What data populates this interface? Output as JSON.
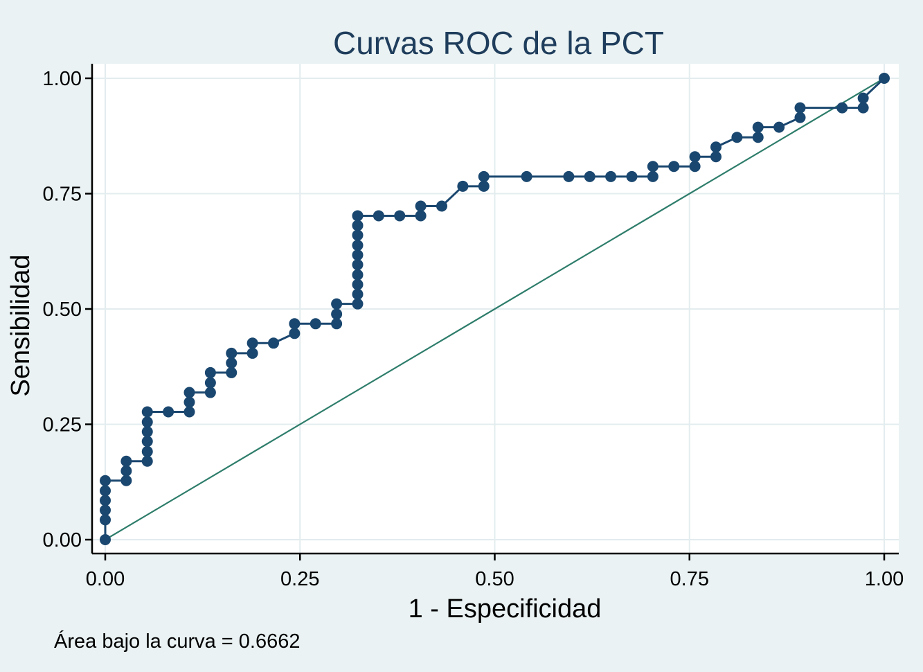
{
  "colors": {
    "background": "#eaf2f3",
    "plot_background": "#ffffff",
    "grid": "#e3ecee",
    "roc_line": "#1a476f",
    "reference_line": "#2e7d6b",
    "title": "#1f3d5c"
  },
  "chart_data": {
    "type": "line",
    "title": "Curvas ROC de la PCT",
    "xlabel": "1 - Especificidad",
    "ylabel": "Sensibilidad",
    "xlim": [
      0,
      1
    ],
    "ylim": [
      0,
      1
    ],
    "xticks": [
      "0.00",
      "0.25",
      "0.50",
      "0.75",
      "1.00"
    ],
    "yticks": [
      "0.00",
      "0.25",
      "0.50",
      "0.75",
      "1.00"
    ],
    "grid": true,
    "legend": "none",
    "note": "Área bajo la curva = 0.6662",
    "series": [
      {
        "values": [
          [
            0.0,
            0.0
          ],
          [
            0.0,
            0.043
          ],
          [
            0.0,
            0.064
          ],
          [
            0.0,
            0.085
          ],
          [
            0.0,
            0.106
          ],
          [
            0.0,
            0.128
          ],
          [
            0.027,
            0.128
          ],
          [
            0.027,
            0.149
          ],
          [
            0.027,
            0.17
          ],
          [
            0.054,
            0.17
          ],
          [
            0.054,
            0.191
          ],
          [
            0.054,
            0.213
          ],
          [
            0.054,
            0.234
          ],
          [
            0.054,
            0.255
          ],
          [
            0.054,
            0.277
          ],
          [
            0.081,
            0.277
          ],
          [
            0.108,
            0.277
          ],
          [
            0.108,
            0.298
          ],
          [
            0.108,
            0.319
          ],
          [
            0.135,
            0.319
          ],
          [
            0.135,
            0.34
          ],
          [
            0.135,
            0.362
          ],
          [
            0.162,
            0.362
          ],
          [
            0.162,
            0.383
          ],
          [
            0.162,
            0.404
          ],
          [
            0.189,
            0.404
          ],
          [
            0.189,
            0.426
          ],
          [
            0.216,
            0.426
          ],
          [
            0.243,
            0.447
          ],
          [
            0.243,
            0.468
          ],
          [
            0.27,
            0.468
          ],
          [
            0.297,
            0.468
          ],
          [
            0.297,
            0.489
          ],
          [
            0.297,
            0.511
          ],
          [
            0.324,
            0.511
          ],
          [
            0.324,
            0.532
          ],
          [
            0.324,
            0.553
          ],
          [
            0.324,
            0.574
          ],
          [
            0.324,
            0.596
          ],
          [
            0.324,
            0.617
          ],
          [
            0.324,
            0.638
          ],
          [
            0.324,
            0.66
          ],
          [
            0.324,
            0.681
          ],
          [
            0.324,
            0.702
          ],
          [
            0.351,
            0.702
          ],
          [
            0.378,
            0.702
          ],
          [
            0.405,
            0.702
          ],
          [
            0.405,
            0.723
          ],
          [
            0.432,
            0.723
          ],
          [
            0.459,
            0.766
          ],
          [
            0.486,
            0.766
          ],
          [
            0.486,
            0.787
          ],
          [
            0.541,
            0.787
          ],
          [
            0.595,
            0.787
          ],
          [
            0.622,
            0.787
          ],
          [
            0.649,
            0.787
          ],
          [
            0.676,
            0.787
          ],
          [
            0.703,
            0.787
          ],
          [
            0.703,
            0.809
          ],
          [
            0.73,
            0.809
          ],
          [
            0.757,
            0.809
          ],
          [
            0.757,
            0.83
          ],
          [
            0.784,
            0.83
          ],
          [
            0.784,
            0.851
          ],
          [
            0.811,
            0.872
          ],
          [
            0.838,
            0.872
          ],
          [
            0.838,
            0.894
          ],
          [
            0.865,
            0.894
          ],
          [
            0.892,
            0.915
          ],
          [
            0.892,
            0.936
          ],
          [
            0.946,
            0.936
          ],
          [
            0.973,
            0.936
          ],
          [
            0.973,
            0.957
          ],
          [
            1.0,
            1.0
          ]
        ]
      }
    ],
    "reference_line": [
      [
        0,
        0
      ],
      [
        1,
        1
      ]
    ]
  }
}
